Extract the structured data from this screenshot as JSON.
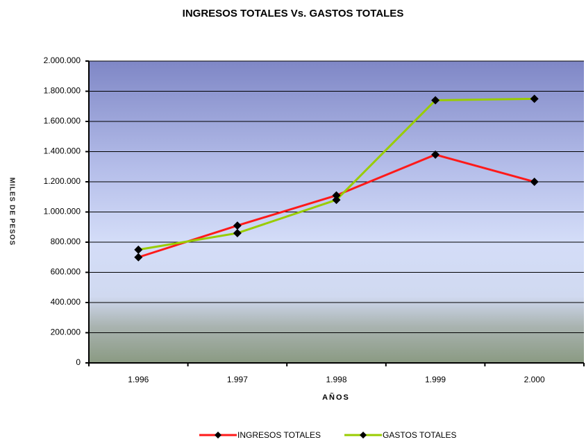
{
  "chart_data": {
    "type": "line",
    "title": "INGRESOS TOTALES Vs. GASTOS TOTALES",
    "x_label": "AÑOS",
    "y_label": "MILES DE PESOS",
    "categories": [
      "1.996",
      "1.997",
      "1.998",
      "1.999",
      "2.000"
    ],
    "series": [
      {
        "name": "INGRESOS TOTALES",
        "color": "#ff1a1a",
        "values": [
          700000,
          910000,
          1110000,
          1380000,
          1200000
        ]
      },
      {
        "name": "GASTOS TOTALES",
        "color": "#99cc00",
        "values": [
          750000,
          860000,
          1080000,
          1740000,
          1750000
        ]
      }
    ],
    "ylim": [
      0,
      2000000
    ],
    "yticks": [
      0,
      {
        "value": 200000,
        "label": "200.000"
      },
      {
        "value": 400000,
        "label": "400.000"
      },
      {
        "value": 600000,
        "label": "600.000"
      },
      {
        "value": 800000,
        "label": "800.000"
      },
      {
        "value": 1000000,
        "label": "1.000.000"
      },
      {
        "value": 1200000,
        "label": "1.200.000"
      },
      {
        "value": 1400000,
        "label": "1.400.000"
      },
      {
        "value": 1600000,
        "label": "1.600.000"
      },
      {
        "value": 1800000,
        "label": "1.800.000"
      },
      {
        "value": 2000000,
        "label": "2.000.000"
      }
    ],
    "grid": true,
    "legend": "bottom"
  }
}
